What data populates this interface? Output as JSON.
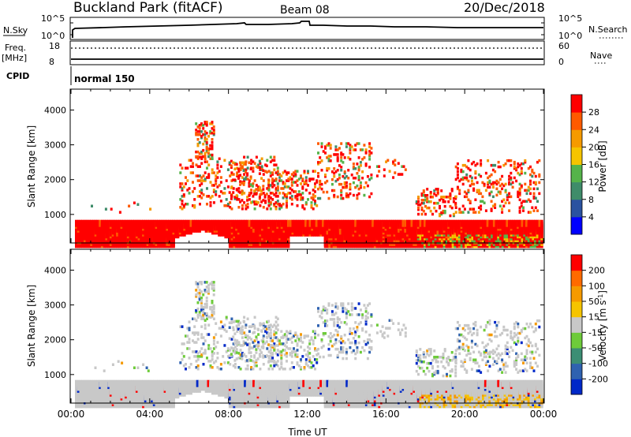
{
  "header": {
    "station": "Buckland Park (fitACF)",
    "beam": "Beam 08",
    "date": "20/Dec/2018"
  },
  "status_panels": {
    "nsky_label": "N.Sky",
    "nsky_ticks": [
      "10^5",
      "10^0"
    ],
    "nsearch_label": "N.Search",
    "nsearch_ticks": [
      "10^5",
      "10^0"
    ],
    "freq_label": "Freq.",
    "freq_unit": "[MHz]",
    "freq_ticks": [
      "18",
      "8"
    ],
    "nave_label": "Nave",
    "nave_ticks": [
      "60",
      "0"
    ],
    "cpid_label": "CPID",
    "cpid_value": "normal 150"
  },
  "colors": {
    "power": [
      "#0000ff",
      "#2a52a0",
      "#3f8c6a",
      "#55b34a",
      "#f5c400",
      "#f59a00",
      "#ff5a00",
      "#ff0000"
    ],
    "velocity": [
      "#0028c8",
      "#2f62b0",
      "#3c8e74",
      "#6ecb3a",
      "#c8c8c8",
      "#f5c400",
      "#f59a00",
      "#ff6a00",
      "#ff0000"
    ]
  },
  "chart_data": [
    {
      "type": "heatmap",
      "panel": "power",
      "ylabel": "Slant Range [km]",
      "xlabel": "Time UT",
      "x_ticks": [
        "00:00",
        "04:00",
        "08:00",
        "12:00",
        "16:00",
        "20:00",
        "00:00"
      ],
      "x_range_hours": [
        0,
        24
      ],
      "y_range": [
        180,
        4600
      ],
      "y_ticks": [
        1000,
        2000,
        3000,
        4000
      ],
      "colorbar_label": "Power [dB]",
      "colorbar_ticks": [
        4,
        8,
        12,
        16,
        20,
        24,
        28
      ]
    },
    {
      "type": "heatmap",
      "panel": "velocity",
      "ylabel": "Slant Range [km]",
      "xlabel": "Time UT",
      "x_ticks": [
        "00:00",
        "04:00",
        "08:00",
        "12:00",
        "16:00",
        "20:00",
        "00:00"
      ],
      "x_range_hours": [
        0,
        24
      ],
      "y_range": [
        180,
        4600
      ],
      "y_ticks": [
        1000,
        2000,
        3000,
        4000
      ],
      "colorbar_label": "Velocity [m s^-1]",
      "colorbar_ticks": [
        -200,
        -100,
        -50,
        -15,
        15,
        50,
        100,
        200
      ]
    }
  ]
}
